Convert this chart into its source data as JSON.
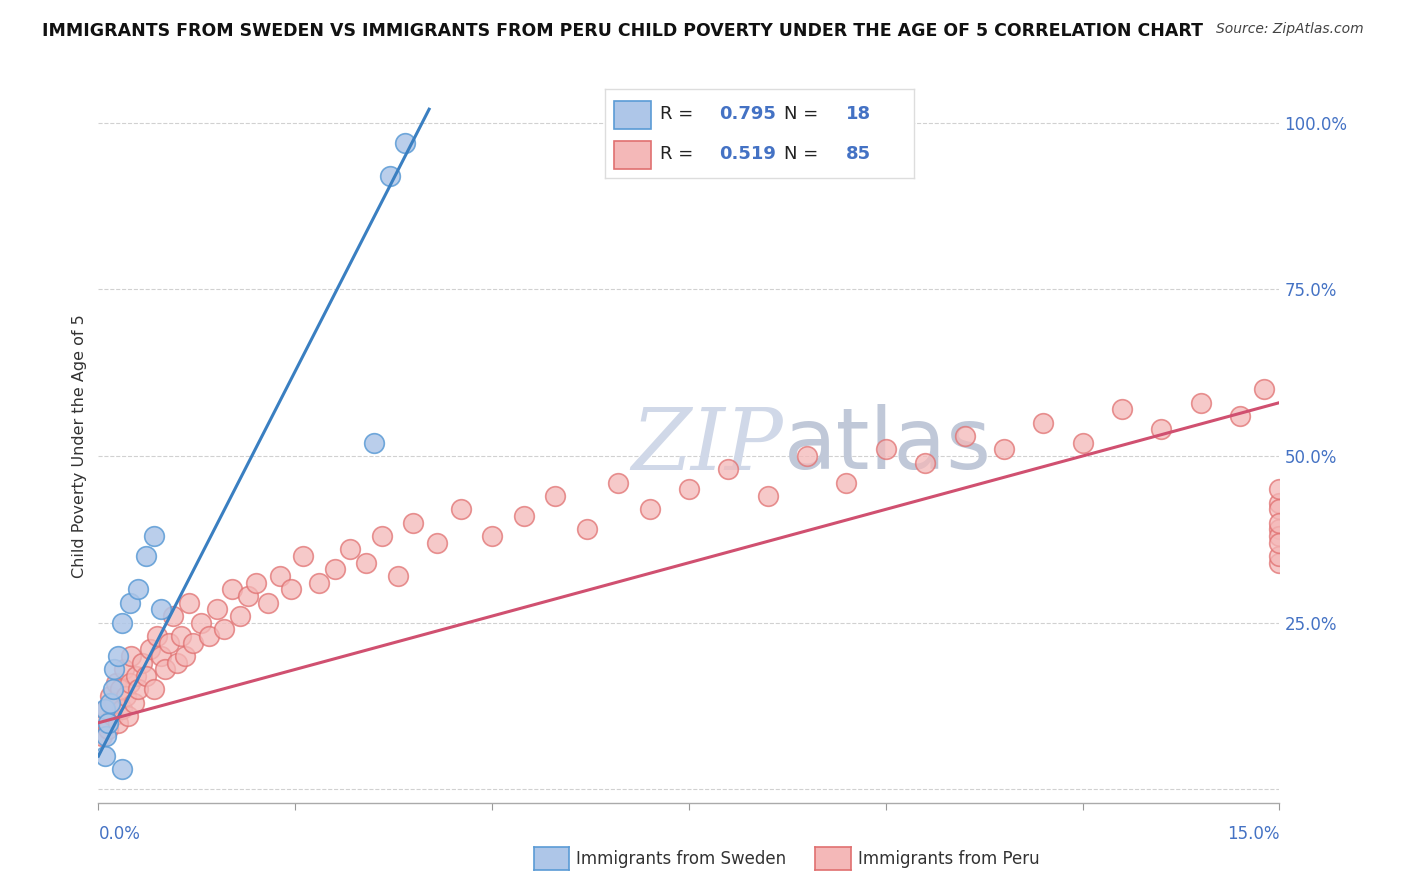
{
  "title": "IMMIGRANTS FROM SWEDEN VS IMMIGRANTS FROM PERU CHILD POVERTY UNDER THE AGE OF 5 CORRELATION CHART",
  "source": "Source: ZipAtlas.com",
  "ylabel": "Child Poverty Under the Age of 5",
  "legend_sweden_label": "Immigrants from Sweden",
  "legend_peru_label": "Immigrants from Peru",
  "R_sweden": 0.795,
  "N_sweden": 18,
  "R_peru": 0.519,
  "N_peru": 85,
  "sweden_fill_color": "#aec6e8",
  "sweden_edge_color": "#5b9bd5",
  "peru_fill_color": "#f4b8b8",
  "peru_edge_color": "#e07070",
  "blue_line_color": "#3a7fc1",
  "pink_line_color": "#d05070",
  "watermark_color": "#d0d8e8",
  "background_color": "#ffffff",
  "xmin": 0.0,
  "xmax": 0.15,
  "ymin": -0.02,
  "ymax": 1.05,
  "yticks": [
    0.0,
    0.25,
    0.5,
    0.75,
    1.0
  ],
  "ytick_labels": [
    "",
    "25.0%",
    "50.0%",
    "75.0%",
    "100.0%"
  ],
  "sweden_x": [
    0.0008,
    0.0008,
    0.001,
    0.0012,
    0.0015,
    0.0018,
    0.002,
    0.0025,
    0.003,
    0.004,
    0.005,
    0.006,
    0.007,
    0.008,
    0.003,
    0.035,
    0.037,
    0.039
  ],
  "sweden_y": [
    0.05,
    0.12,
    0.08,
    0.1,
    0.13,
    0.15,
    0.18,
    0.2,
    0.25,
    0.28,
    0.3,
    0.35,
    0.38,
    0.27,
    0.03,
    0.52,
    0.92,
    0.97
  ],
  "peru_x": [
    0.0005,
    0.0008,
    0.001,
    0.0012,
    0.0015,
    0.0018,
    0.002,
    0.0022,
    0.0025,
    0.0028,
    0.003,
    0.0032,
    0.0035,
    0.0038,
    0.004,
    0.0042,
    0.0045,
    0.0048,
    0.005,
    0.0055,
    0.006,
    0.0065,
    0.007,
    0.0075,
    0.008,
    0.0085,
    0.009,
    0.0095,
    0.01,
    0.0105,
    0.011,
    0.0115,
    0.012,
    0.013,
    0.014,
    0.015,
    0.016,
    0.017,
    0.018,
    0.019,
    0.02,
    0.0215,
    0.023,
    0.0245,
    0.026,
    0.028,
    0.03,
    0.032,
    0.034,
    0.036,
    0.038,
    0.04,
    0.043,
    0.046,
    0.05,
    0.054,
    0.058,
    0.062,
    0.066,
    0.07,
    0.075,
    0.08,
    0.085,
    0.09,
    0.095,
    0.1,
    0.105,
    0.11,
    0.115,
    0.12,
    0.125,
    0.13,
    0.135,
    0.14,
    0.145,
    0.148,
    0.15,
    0.15,
    0.15,
    0.15,
    0.15,
    0.15,
    0.15,
    0.15,
    0.15
  ],
  "peru_y": [
    0.08,
    0.1,
    0.12,
    0.09,
    0.14,
    0.11,
    0.13,
    0.16,
    0.1,
    0.15,
    0.12,
    0.18,
    0.14,
    0.11,
    0.16,
    0.2,
    0.13,
    0.17,
    0.15,
    0.19,
    0.17,
    0.21,
    0.15,
    0.23,
    0.2,
    0.18,
    0.22,
    0.26,
    0.19,
    0.23,
    0.2,
    0.28,
    0.22,
    0.25,
    0.23,
    0.27,
    0.24,
    0.3,
    0.26,
    0.29,
    0.31,
    0.28,
    0.32,
    0.3,
    0.35,
    0.31,
    0.33,
    0.36,
    0.34,
    0.38,
    0.32,
    0.4,
    0.37,
    0.42,
    0.38,
    0.41,
    0.44,
    0.39,
    0.46,
    0.42,
    0.45,
    0.48,
    0.44,
    0.5,
    0.46,
    0.51,
    0.49,
    0.53,
    0.51,
    0.55,
    0.52,
    0.57,
    0.54,
    0.58,
    0.56,
    0.6,
    0.43,
    0.39,
    0.45,
    0.42,
    0.34,
    0.38,
    0.35,
    0.4,
    0.37
  ],
  "sw_line_x0": 0.0,
  "sw_line_y0": 0.05,
  "sw_line_x1": 0.042,
  "sw_line_y1": 1.02,
  "pe_line_x0": 0.0,
  "pe_line_y0": 0.1,
  "pe_line_x1": 0.15,
  "pe_line_y1": 0.58
}
